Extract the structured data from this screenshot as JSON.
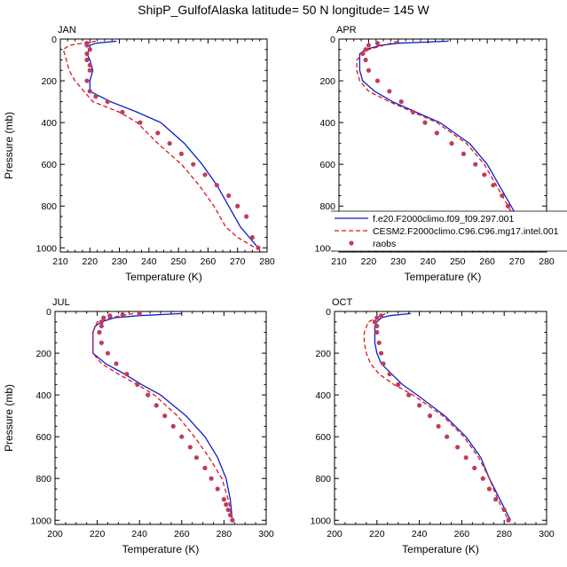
{
  "title": "ShipP_GulfofAlaska  latitude= 50 N longitude= 145 W",
  "legend": {
    "entries": [
      {
        "label": "f.e20.F2000climo.f09_f09.297.001",
        "color": "#0a1ecc",
        "style": "solid"
      },
      {
        "label": "CESM2.F2000climo.C96.C96.mg17.intel.001",
        "color": "#e0141e",
        "style": "dashed"
      },
      {
        "label": "raobs",
        "color": "#c03c5a",
        "style": "marker"
      }
    ]
  },
  "chart_data": [
    {
      "type": "line",
      "panel_title": "JAN",
      "xlabel": "Temperature (K)",
      "ylabel": "Pressure (mb)",
      "xlim": [
        210,
        280
      ],
      "ylim": [
        1020,
        0
      ],
      "xticks": [
        210,
        220,
        230,
        240,
        250,
        260,
        270,
        280
      ],
      "yticks": [
        0,
        200,
        400,
        600,
        800,
        1000
      ],
      "series": [
        {
          "name": "f.e20.F2000climo.f09_f09.297.001",
          "temperature": [
            229,
            222,
            220,
            220,
            219,
            220,
            221,
            220,
            220,
            227,
            236,
            244,
            252,
            258,
            263,
            267,
            271,
            274,
            277
          ],
          "pressure": [
            10,
            20,
            30,
            50,
            70,
            100,
            150,
            200,
            250,
            300,
            350,
            400,
            500,
            600,
            700,
            800,
            900,
            950,
            1000
          ]
        },
        {
          "name": "CESM2.F2000climo.C96.C96.mg17.intel.001",
          "temperature": [
            222,
            213,
            211,
            212,
            213,
            215,
            218,
            221,
            230,
            236,
            243,
            251,
            257,
            262,
            266,
            270,
            276
          ],
          "pressure": [
            10,
            30,
            50,
            100,
            150,
            200,
            250,
            300,
            350,
            400,
            500,
            600,
            700,
            800,
            900,
            950,
            1000
          ]
        },
        {
          "name": "raobs",
          "temperature": [
            219,
            219,
            220,
            219,
            219,
            220,
            220,
            219,
            220,
            222,
            226,
            231,
            237,
            243,
            247,
            251,
            255,
            259,
            263,
            267,
            270,
            273,
            275,
            277
          ],
          "pressure": [
            20,
            30,
            50,
            70,
            100,
            125,
            150,
            200,
            250,
            275,
            300,
            350,
            400,
            450,
            500,
            550,
            600,
            650,
            700,
            750,
            800,
            850,
            950,
            1000
          ]
        }
      ]
    },
    {
      "type": "line",
      "panel_title": "APR",
      "xlabel": "Temperature (K)",
      "ylabel": "",
      "xlim": [
        210,
        280
      ],
      "ylim": [
        1020,
        0
      ],
      "xticks": [
        210,
        220,
        230,
        240,
        250,
        260,
        270,
        280
      ],
      "yticks": [
        0,
        200,
        400,
        600,
        800,
        1000
      ],
      "series": [
        {
          "name": "f.e20.F2000climo.f09_f09.297.001",
          "temperature": [
            247,
            230,
            224,
            219,
            217,
            217,
            217,
            218,
            222,
            228,
            236,
            244,
            254,
            260,
            264,
            268,
            272,
            277
          ],
          "pressure": [
            10,
            20,
            30,
            50,
            70,
            100,
            150,
            200,
            250,
            300,
            350,
            400,
            500,
            600,
            700,
            800,
            900,
            1000
          ]
        },
        {
          "name": "CESM2.F2000climo.C96.C96.mg17.intel.001",
          "temperature": [
            230,
            220,
            216,
            216,
            217,
            220,
            227,
            235,
            243,
            253,
            259,
            263,
            267,
            271,
            277
          ],
          "pressure": [
            10,
            50,
            100,
            150,
            200,
            250,
            300,
            350,
            400,
            500,
            600,
            700,
            800,
            900,
            1000
          ]
        },
        {
          "name": "raobs",
          "temperature": [
            223,
            220,
            219,
            218,
            219,
            220,
            223,
            227,
            231,
            235,
            239,
            243,
            248,
            252,
            256,
            259,
            262,
            265,
            267,
            269,
            272,
            277
          ],
          "pressure": [
            20,
            30,
            50,
            70,
            100,
            150,
            200,
            250,
            300,
            350,
            400,
            450,
            500,
            550,
            600,
            650,
            700,
            750,
            800,
            850,
            900,
            1000
          ]
        }
      ]
    },
    {
      "type": "line",
      "panel_title": "JUL",
      "xlabel": "Temperature (K)",
      "ylabel": "Pressure (mb)",
      "xlim": [
        200,
        300
      ],
      "ylim": [
        1020,
        0
      ],
      "xticks": [
        200,
        220,
        240,
        260,
        280,
        300
      ],
      "yticks": [
        0,
        200,
        400,
        600,
        800,
        1000
      ],
      "series": [
        {
          "name": "f.e20.F2000climo.f09_f09.297.001",
          "temperature": [
            260,
            240,
            228,
            222,
            219,
            218,
            218,
            218,
            224,
            233,
            241,
            250,
            262,
            271,
            277,
            281,
            283,
            284
          ],
          "pressure": [
            10,
            20,
            30,
            50,
            70,
            100,
            150,
            200,
            250,
            300,
            350,
            400,
            500,
            600,
            700,
            800,
            900,
            1000
          ]
        },
        {
          "name": "CESM2.F2000climo.C96.C96.mg17.intel.001",
          "temperature": [
            237,
            226,
            220,
            218,
            218,
            218,
            222,
            230,
            239,
            247,
            258,
            266,
            273,
            279,
            282,
            284
          ],
          "pressure": [
            10,
            30,
            50,
            100,
            150,
            200,
            250,
            300,
            350,
            400,
            500,
            600,
            700,
            800,
            900,
            1000
          ]
        },
        {
          "name": "raobs",
          "temperature": [
            240,
            232,
            226,
            223,
            222,
            222,
            221,
            222,
            225,
            229,
            234,
            239,
            244,
            248,
            252,
            256,
            260,
            264,
            267,
            271,
            274,
            277,
            280,
            281,
            282,
            283,
            284
          ],
          "pressure": [
            10,
            15,
            20,
            30,
            50,
            70,
            100,
            150,
            200,
            250,
            300,
            350,
            400,
            450,
            500,
            550,
            600,
            650,
            700,
            750,
            800,
            850,
            900,
            925,
            950,
            975,
            1000
          ]
        }
      ]
    },
    {
      "type": "line",
      "panel_title": "OCT",
      "xlabel": "Temperature (K)",
      "ylabel": "",
      "xlim": [
        200,
        300
      ],
      "ylim": [
        1020,
        0
      ],
      "xticks": [
        200,
        220,
        240,
        260,
        280,
        300
      ],
      "yticks": [
        0,
        200,
        400,
        600,
        800,
        1000
      ],
      "series": [
        {
          "name": "f.e20.F2000climo.f09_f09.297.001",
          "temperature": [
            236,
            226,
            222,
            220,
            219,
            219,
            219,
            220,
            222,
            227,
            232,
            239,
            252,
            262,
            269,
            273,
            278,
            283
          ],
          "pressure": [
            10,
            20,
            30,
            50,
            70,
            100,
            150,
            200,
            250,
            300,
            350,
            400,
            500,
            600,
            700,
            800,
            900,
            1000
          ]
        },
        {
          "name": "CESM2.F2000climo.C96.C96.mg17.intel.001",
          "temperature": [
            224,
            216,
            214,
            214,
            215,
            217,
            221,
            228,
            237,
            251,
            261,
            268,
            273,
            277,
            282
          ],
          "pressure": [
            10,
            50,
            100,
            150,
            200,
            250,
            300,
            350,
            400,
            500,
            600,
            700,
            800,
            900,
            1000
          ]
        },
        {
          "name": "raobs",
          "temperature": [
            222,
            220,
            219,
            220,
            220,
            221,
            222,
            223,
            226,
            230,
            235,
            240,
            245,
            249,
            253,
            258,
            262,
            266,
            270,
            273,
            276,
            280,
            282
          ],
          "pressure": [
            20,
            30,
            50,
            70,
            100,
            150,
            200,
            250,
            300,
            350,
            400,
            450,
            500,
            550,
            600,
            650,
            700,
            750,
            800,
            850,
            900,
            950,
            1000
          ]
        }
      ]
    }
  ]
}
